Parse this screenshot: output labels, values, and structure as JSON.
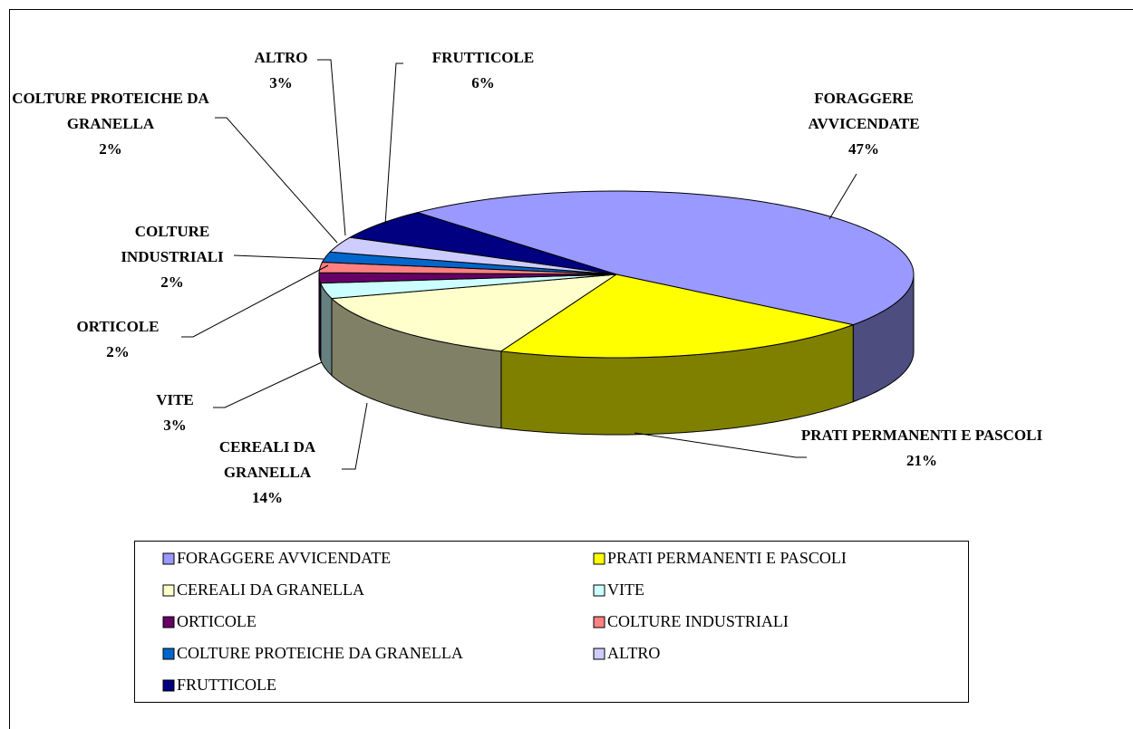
{
  "chart_data": {
    "type": "pie3d",
    "categories": [
      "FORAGGERE AVVICENDATE",
      "PRATI PERMANENTI E PASCOLI",
      "CEREALI DA GRANELLA",
      "VITE",
      "ORTICOLE",
      "COLTURE INDUSTRIALI",
      "COLTURE PROTEICHE DA GRANELLA",
      "ALTRO",
      "FRUTTICOLE"
    ],
    "values": [
      47,
      21,
      14,
      3,
      2,
      2,
      2,
      3,
      6
    ],
    "value_labels": [
      "47%",
      "21%",
      "14%",
      "3%",
      "2%",
      "2%",
      "2%",
      "3%",
      "6%"
    ],
    "colors": [
      "#9999ff",
      "#ffff00",
      "#ffffcc",
      "#ccffff",
      "#660066",
      "#ff8080",
      "#0066cc",
      "#ccccff",
      "#000080"
    ],
    "legend": "bottom"
  }
}
